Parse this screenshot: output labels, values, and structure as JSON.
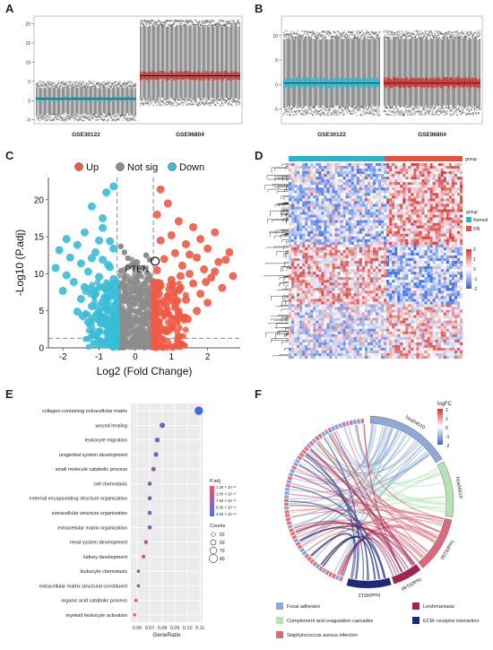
{
  "panels": {
    "a": "A",
    "b": "B",
    "c": "C",
    "d": "D",
    "e": "E",
    "f": "F"
  },
  "chart_data": [
    {
      "panel": "A",
      "type": "box",
      "categories": [
        "GSE30122",
        "GSE96804"
      ],
      "yticks": [
        "20",
        "15",
        "10",
        "5",
        "0",
        "-5"
      ],
      "ylim": [
        -6,
        22
      ],
      "series": [
        {
          "name": "GSE30122",
          "median": 0.5,
          "q1": 0.1,
          "q3": 1.0,
          "whisker_low": -3.5,
          "whisker_high": 3.5,
          "color": "#27b6cc"
        },
        {
          "name": "GSE96804",
          "median": 6.5,
          "q1": 5.5,
          "q3": 7.5,
          "whisker_low": 0.5,
          "whisker_high": 19.5,
          "color": "#d3322f"
        }
      ]
    },
    {
      "panel": "B",
      "type": "box",
      "categories": [
        "GSE30122",
        "GSE96804"
      ],
      "yticks": [
        "10",
        "5",
        "0",
        "-5"
      ],
      "ylim": [
        -8,
        14
      ],
      "series": [
        {
          "name": "GSE30122",
          "median": 0.3,
          "q1": -0.5,
          "q3": 1.3,
          "whisker_low": -4.5,
          "whisker_high": 9.5,
          "color": "#27b6cc"
        },
        {
          "name": "GSE96804",
          "median": 0.3,
          "q1": -0.5,
          "q3": 1.3,
          "whisker_low": -4.5,
          "whisker_high": 9.5,
          "color": "#d3322f"
        }
      ]
    },
    {
      "panel": "C",
      "type": "scatter",
      "title": "",
      "legend": [
        "Up",
        "Not sig",
        "Down"
      ],
      "legend_colors": [
        "#f05a44",
        "#8c8c8c",
        "#39bcd6"
      ],
      "xlabel": "Log2 (Fold Change)",
      "ylabel": "-Log10 (P.adj)",
      "xticks": [
        "-2",
        "-1",
        "0",
        "1",
        "2"
      ],
      "yticks": [
        "0",
        "5",
        "10",
        "15",
        "20"
      ],
      "xlim": [
        -2.4,
        2.9
      ],
      "ylim": [
        0,
        23
      ],
      "threshold_x": [
        -0.5,
        0.5
      ],
      "threshold_y": 1.3,
      "annotation": {
        "label": "PTEN",
        "x": 0.55,
        "y": 11.7
      },
      "down_points": [
        [
          -0.6,
          21.8
        ],
        [
          -0.8,
          21.0
        ],
        [
          -1.2,
          19.1
        ],
        [
          -0.9,
          17.5
        ],
        [
          -1.4,
          15.6
        ],
        [
          -1.9,
          14.7
        ],
        [
          -1.0,
          14.5
        ],
        [
          -0.7,
          14.4
        ],
        [
          -1.6,
          13.9
        ],
        [
          -2.1,
          13.2
        ],
        [
          -0.6,
          13.4
        ],
        [
          -1.8,
          12.2
        ],
        [
          -1.2,
          12.1
        ],
        [
          -0.9,
          11.9
        ],
        [
          -1.5,
          11.4
        ],
        [
          -2.2,
          10.8
        ],
        [
          -0.7,
          10.9
        ],
        [
          -1.3,
          10.3
        ],
        [
          -1.9,
          9.8
        ],
        [
          -1.0,
          9.6
        ],
        [
          -0.6,
          9.3
        ],
        [
          -1.7,
          8.9
        ],
        [
          -1.4,
          8.2
        ],
        [
          -0.8,
          8.1
        ],
        [
          -2.0,
          7.7
        ],
        [
          -1.1,
          7.3
        ],
        [
          -0.6,
          7.0
        ],
        [
          -1.5,
          6.6
        ],
        [
          -0.9,
          6.2
        ],
        [
          -1.2,
          5.6
        ],
        [
          -0.7,
          5.3
        ],
        [
          -1.6,
          4.9
        ],
        [
          -1.0,
          4.4
        ],
        [
          -0.6,
          4.0
        ],
        [
          -1.3,
          3.5
        ],
        [
          -0.8,
          3.1
        ],
        [
          -0.6,
          2.5
        ],
        [
          -1.0,
          2.2
        ],
        [
          -0.7,
          1.8
        ],
        [
          -0.55,
          1.5
        ],
        [
          -0.9,
          16.2
        ],
        [
          -1.1,
          12.9
        ],
        [
          -0.75,
          11.2
        ],
        [
          -0.65,
          8.6
        ],
        [
          -1.25,
          7.9
        ],
        [
          -0.85,
          6.8
        ],
        [
          -0.55,
          5.8
        ],
        [
          -1.45,
          4.3
        ],
        [
          -0.95,
          3.3
        ],
        [
          -0.7,
          2.9
        ]
      ],
      "up_points": [
        [
          0.7,
          21.4
        ],
        [
          0.9,
          19.5
        ],
        [
          0.6,
          18.0
        ],
        [
          1.2,
          17.1
        ],
        [
          1.6,
          16.3
        ],
        [
          2.2,
          15.6
        ],
        [
          1.0,
          15.2
        ],
        [
          1.8,
          14.7
        ],
        [
          0.7,
          14.5
        ],
        [
          1.4,
          14.0
        ],
        [
          2.0,
          13.4
        ],
        [
          2.6,
          12.9
        ],
        [
          1.1,
          12.8
        ],
        [
          1.7,
          12.2
        ],
        [
          0.8,
          12.0
        ],
        [
          2.3,
          11.6
        ],
        [
          1.3,
          11.1
        ],
        [
          1.9,
          10.6
        ],
        [
          0.6,
          10.5
        ],
        [
          1.5,
          10.0
        ],
        [
          2.1,
          9.5
        ],
        [
          2.7,
          9.7
        ],
        [
          1.0,
          9.2
        ],
        [
          1.6,
          8.7
        ],
        [
          0.7,
          8.4
        ],
        [
          2.4,
          8.1
        ],
        [
          1.2,
          7.8
        ],
        [
          1.8,
          7.3
        ],
        [
          0.9,
          7.0
        ],
        [
          1.4,
          6.5
        ],
        [
          2.0,
          6.1
        ],
        [
          0.6,
          6.0
        ],
        [
          1.1,
          5.5
        ],
        [
          1.7,
          5.0
        ],
        [
          0.8,
          4.6
        ],
        [
          1.3,
          4.1
        ],
        [
          0.6,
          3.6
        ],
        [
          1.0,
          3.2
        ],
        [
          0.7,
          2.7
        ],
        [
          0.9,
          2.3
        ],
        [
          0.6,
          1.9
        ],
        [
          0.55,
          1.5
        ],
        [
          1.5,
          12.6
        ],
        [
          2.5,
          11.9
        ],
        [
          1.25,
          9.7
        ],
        [
          0.85,
          5.8
        ],
        [
          1.95,
          8.9
        ],
        [
          0.65,
          7.3
        ],
        [
          1.45,
          3.9
        ],
        [
          2.2,
          10.3
        ]
      ],
      "notsig_points": [
        [
          -0.4,
          13.7
        ],
        [
          -0.3,
          12.9
        ],
        [
          -0.2,
          12.1
        ],
        [
          0.3,
          12.5
        ],
        [
          0.4,
          11.9
        ],
        [
          -0.1,
          11.2
        ],
        [
          0.2,
          10.8
        ],
        [
          -0.4,
          10.4
        ],
        [
          0.1,
          10.1
        ],
        [
          -0.3,
          9.6
        ],
        [
          0.35,
          9.4
        ],
        [
          -0.15,
          9.0
        ],
        [
          0.25,
          8.7
        ],
        [
          -0.4,
          8.3
        ],
        [
          0.05,
          8.0
        ],
        [
          0.4,
          7.6
        ],
        [
          -0.25,
          7.3
        ],
        [
          0.15,
          6.9
        ],
        [
          -0.35,
          6.5
        ],
        [
          0.3,
          6.2
        ],
        [
          -0.05,
          5.9
        ],
        [
          0.2,
          5.5
        ],
        [
          -0.4,
          5.2
        ],
        [
          0.1,
          4.8
        ],
        [
          -0.2,
          4.5
        ],
        [
          0.35,
          4.2
        ],
        [
          -0.3,
          3.8
        ],
        [
          0.0,
          3.5
        ],
        [
          0.25,
          3.2
        ],
        [
          -0.15,
          2.9
        ],
        [
          0.4,
          2.6
        ],
        [
          -0.4,
          2.3
        ],
        [
          0.1,
          2.0
        ],
        [
          -0.25,
          1.8
        ],
        [
          0.3,
          1.5
        ],
        [
          -0.05,
          1.2
        ],
        [
          0.2,
          1.0
        ],
        [
          -0.35,
          0.8
        ],
        [
          0.05,
          0.6
        ],
        [
          -0.1,
          0.4
        ],
        [
          0.15,
          0.3
        ],
        [
          0.0,
          0.1
        ],
        [
          -0.2,
          0.2
        ],
        [
          0.28,
          0.5
        ],
        [
          -0.3,
          1.1
        ],
        [
          0.38,
          1.9
        ],
        [
          -0.45,
          3.0
        ],
        [
          0.45,
          4.0
        ],
        [
          -0.05,
          6.8
        ],
        [
          0.05,
          9.5
        ]
      ]
    },
    {
      "panel": "D",
      "type": "heatmap",
      "group_label": "group",
      "legend_title": "group",
      "legend_items": [
        "Normal",
        "DN"
      ],
      "legend_colors": [
        "#27b6cc",
        "#e8503a"
      ],
      "color_scale_ticks": [
        "2",
        "1",
        "0",
        "-1",
        "-2"
      ]
    },
    {
      "panel": "E",
      "type": "scatter",
      "xlabel": "GeneRatio",
      "xticks": [
        "0.06",
        "0.07",
        "0.08",
        "0.09",
        "0.10",
        "0.11"
      ],
      "xlim": [
        0.055,
        0.112
      ],
      "categories": [
        "collagen-containing extracellular matrix",
        "wound healing",
        "leukocyte migration",
        "urogenital system development",
        "small molecule catabolic process",
        "cell chemotaxis",
        "external encapsulating structure organization",
        "extracellular structure organization",
        "extracellular matrix organization",
        "renal system development",
        "kidney development",
        "leukocyte chemotaxis",
        "extracellular matrix structural constituent",
        "organic acid catabolic process",
        "myeloid leukocyte activation"
      ],
      "values": [
        0.109,
        0.08,
        0.076,
        0.075,
        0.073,
        0.07,
        0.07,
        0.07,
        0.07,
        0.067,
        0.065,
        0.061,
        0.061,
        0.059,
        0.058
      ],
      "counts": [
        82,
        60,
        56,
        55,
        53,
        51,
        51,
        51,
        51,
        49,
        47,
        44,
        44,
        43,
        42
      ],
      "padj": [
        0.1,
        0.5,
        0.6,
        0.6,
        1.4,
        0.8,
        0.8,
        0.8,
        0.8,
        1.6,
        2.2,
        0.9,
        1.0,
        2.4,
        2.2
      ],
      "legend_padj_title": "P.adj",
      "legend_padj_ticks": [
        "1.25 × 10⁻¹¹",
        "1.00 × 10⁻¹¹",
        "7.50 × 10⁻¹²",
        "5.00 × 10⁻¹²",
        "2.50 × 10⁻¹²"
      ],
      "legend_counts_title": "Counts",
      "legend_counts_ticks": [
        "50",
        "60",
        "70",
        "80"
      ]
    },
    {
      "panel": "F",
      "type": "chord",
      "legend_title": "logFC",
      "color_scale_ticks": [
        "2",
        "1",
        "0",
        "-1",
        "-2"
      ],
      "pathways": [
        "hsa04510",
        "hsa04610",
        "hsa05150",
        "hsa05140",
        "hsa04512"
      ],
      "legend_items": [
        {
          "label": "Focal adhesion",
          "color": "#8ea9d6"
        },
        {
          "label": "Leishmaniasis",
          "color": "#a3224f"
        },
        {
          "label": "Complement and coagulation cascades",
          "color": "#b5e3b6"
        },
        {
          "label": "ECM−receptor interaction",
          "color": "#1b2a7a"
        },
        {
          "label": "Staphylococcus aureus infection",
          "color": "#d96a7b"
        }
      ]
    }
  ]
}
